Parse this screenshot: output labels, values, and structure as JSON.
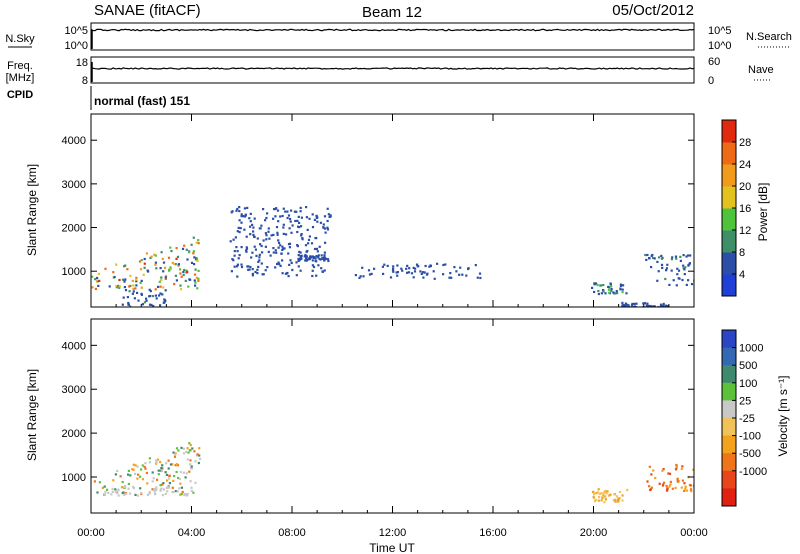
{
  "header": {
    "station": "SANAE (fitACF)",
    "beam": "Beam 12",
    "date": "05/Oct/2012"
  },
  "summary_panels": {
    "nsky_label": "N.Sky",
    "nsky_ticks": [
      "10^5",
      "10^0"
    ],
    "nsearch_label": "N.Search",
    "nsearch_ticks": [
      "10^5",
      "10^0"
    ],
    "freq_label_line1": "Freq.",
    "freq_label_line2": "[MHz]",
    "freq_ticks": [
      "18",
      "8"
    ],
    "nave_label": "Nave",
    "nave_ticks": [
      "60",
      "0"
    ],
    "cpid_label": "CPID",
    "cpid_value": "normal (fast) 151"
  },
  "colors": {
    "power_scale": [
      "#1f3fd6",
      "#2b4fa8",
      "#3e8f67",
      "#4fc43a",
      "#e3c21f",
      "#f29a1c",
      "#ef6a14",
      "#e02a10"
    ],
    "velocity_scale": [
      "#2a46c4",
      "#3368b3",
      "#3f8a6e",
      "#5cc23a",
      "#c8c8c8",
      "#f0c35a",
      "#f3a21c",
      "#ef741a",
      "#e8461a",
      "#e02010"
    ],
    "nsky_line": "#000000"
  },
  "chart_data": [
    {
      "type": "heatmap",
      "panel": "power",
      "xlabel": "",
      "ylabel": "Slant Range [km]",
      "xlim": [
        0,
        24
      ],
      "ylim": [
        180,
        4600
      ],
      "yticks": [
        "1000",
        "2000",
        "3000",
        "4000"
      ],
      "colorbar_label": "Power [dB]",
      "colorbar_ticks": [
        "4",
        "8",
        "12",
        "16",
        "20",
        "24",
        "28"
      ],
      "colorbar_range": [
        0,
        32
      ],
      "echo_regions": [
        {
          "t": [
            0.0,
            4.3
          ],
          "r": [
            600,
            1800
          ],
          "value_range": [
            4,
            30
          ]
        },
        {
          "t": [
            1.2,
            3.0
          ],
          "r": [
            200,
            600
          ],
          "value_range": [
            4,
            10
          ]
        },
        {
          "t": [
            5.5,
            9.5
          ],
          "r": [
            900,
            2500
          ],
          "value_range": [
            4,
            8
          ]
        },
        {
          "t": [
            8.2,
            9.4
          ],
          "r": [
            1250,
            1400
          ],
          "value_range": [
            4,
            8
          ]
        },
        {
          "t": [
            10.5,
            15.5
          ],
          "r": [
            850,
            1200
          ],
          "value_range": [
            4,
            8
          ]
        },
        {
          "t": [
            19.8,
            21.3
          ],
          "r": [
            500,
            750
          ],
          "value_range": [
            4,
            16
          ]
        },
        {
          "t": [
            22.0,
            24.0
          ],
          "r": [
            700,
            1400
          ],
          "value_range": [
            4,
            10
          ]
        },
        {
          "t": [
            21.0,
            23.0
          ],
          "r": [
            200,
            300
          ],
          "value_range": [
            4,
            8
          ]
        }
      ]
    },
    {
      "type": "heatmap",
      "panel": "velocity",
      "xlabel": "Time UT",
      "ylabel": "Slant Range [km]",
      "xlim": [
        0,
        24
      ],
      "ylim": [
        180,
        4600
      ],
      "xticks": [
        "00:00",
        "04:00",
        "08:00",
        "12:00",
        "16:00",
        "20:00",
        "00:00"
      ],
      "yticks": [
        "1000",
        "2000",
        "3000",
        "4000"
      ],
      "colorbar_label": "Velocity [m s⁻¹]",
      "colorbar_ticks": [
        "1000",
        "500",
        "100",
        "25",
        "-25",
        "-100",
        "-500",
        "-1000"
      ],
      "echo_regions": [
        {
          "t": [
            0.0,
            4.3
          ],
          "r": [
            600,
            1800
          ],
          "value": "mixed"
        },
        {
          "t": [
            0.5,
            4.0
          ],
          "r": [
            600,
            800
          ],
          "value": "ground scatter"
        },
        {
          "t": [
            19.8,
            21.3
          ],
          "r": [
            450,
            750
          ],
          "value": "-100"
        },
        {
          "t": [
            22.0,
            24.0
          ],
          "r": [
            700,
            1300
          ],
          "value": "-500"
        }
      ]
    }
  ]
}
